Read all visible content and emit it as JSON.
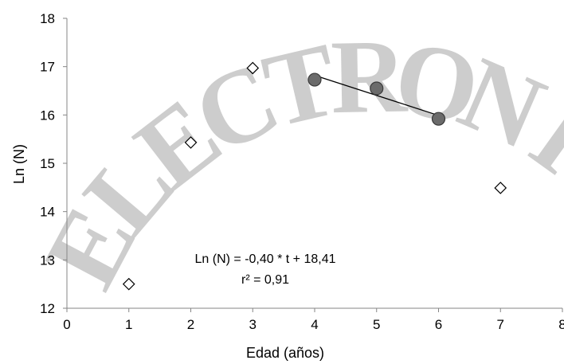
{
  "chart_data": {
    "type": "scatter",
    "title": "",
    "xlabel": "Edad (años)",
    "ylabel": "Ln (N)",
    "xlim": [
      0,
      8
    ],
    "ylim": [
      12,
      18
    ],
    "xticks": [
      "0",
      "1",
      "2",
      "3",
      "4",
      "5",
      "6",
      "7",
      "8"
    ],
    "yticks": [
      "12",
      "13",
      "14",
      "15",
      "16",
      "17",
      "18"
    ],
    "grid": false,
    "legend": "none",
    "series": [
      {
        "marker": "diamond-open",
        "color": "#000000",
        "points": [
          {
            "x": 1,
            "y": 12.5
          },
          {
            "x": 2,
            "y": 15.43
          },
          {
            "x": 3,
            "y": 16.97
          },
          {
            "x": 7,
            "y": 14.49
          }
        ]
      },
      {
        "marker": "circle-filled",
        "color": "#6b6b6b",
        "points": [
          {
            "x": 4,
            "y": 16.73
          },
          {
            "x": 5,
            "y": 16.55
          },
          {
            "x": 6,
            "y": 15.92
          }
        ]
      }
    ],
    "trendline": {
      "x1": 4,
      "y1": 16.82,
      "x2": 6,
      "y2": 15.99,
      "color": "#000000"
    },
    "annotations": {
      "equation": "Ln (N) = -0,40 * t + 18,41",
      "r2": "r² = 0,91"
    }
  },
  "watermark": {
    "text": "ELECTRONICO",
    "color": "#c8c8c8"
  }
}
